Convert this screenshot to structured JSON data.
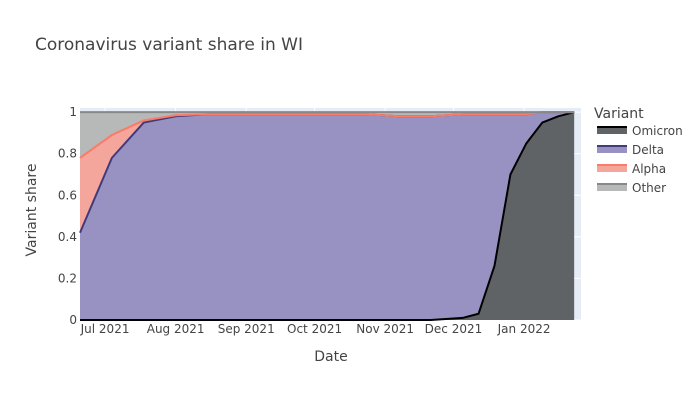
{
  "chart_data": {
    "type": "area",
    "title": "Coronavirus variant share in WI",
    "xlabel": "Date",
    "ylabel": "Variant share",
    "xlim": [
      "2021-06-20",
      "2022-01-26"
    ],
    "ylim": [
      0,
      1.02
    ],
    "grid": true,
    "legend_title": "Variant",
    "legend_position": "right",
    "x_ticks": [
      {
        "date": "2021-07-01",
        "label": "Jul 2021"
      },
      {
        "date": "2021-08-01",
        "label": "Aug 2021"
      },
      {
        "date": "2021-09-01",
        "label": "Sep 2021"
      },
      {
        "date": "2021-10-01",
        "label": "Oct 2021"
      },
      {
        "date": "2021-11-01",
        "label": "Nov 2021"
      },
      {
        "date": "2021-12-01",
        "label": "Dec 2021"
      },
      {
        "date": "2022-01-01",
        "label": "Jan 2022"
      }
    ],
    "y_ticks": [
      0,
      0.2,
      0.4,
      0.6,
      0.8,
      1
    ],
    "x": [
      "2021-06-20",
      "2021-07-04",
      "2021-07-18",
      "2021-08-01",
      "2021-08-15",
      "2021-08-29",
      "2021-09-12",
      "2021-09-26",
      "2021-10-10",
      "2021-10-24",
      "2021-11-07",
      "2021-11-21",
      "2021-12-05",
      "2021-12-12",
      "2021-12-19",
      "2021-12-26",
      "2022-01-02",
      "2022-01-09",
      "2022-01-16",
      "2022-01-23"
    ],
    "series": [
      {
        "name": "Omicron",
        "fill": "#5f6366",
        "line": "#000000",
        "values": [
          0,
          0,
          0,
          0,
          0,
          0,
          0,
          0,
          0,
          0,
          0,
          0,
          0.01,
          0.03,
          0.26,
          0.7,
          0.85,
          0.95,
          0.98,
          1.0
        ]
      },
      {
        "name": "Delta",
        "fill": "#9892c2",
        "line": "#433a7a",
        "values": [
          0.42,
          0.78,
          0.95,
          0.98,
          0.99,
          0.99,
          0.99,
          0.99,
          0.99,
          0.99,
          0.98,
          0.98,
          0.98,
          0.96,
          0.73,
          0.29,
          0.14,
          0.05,
          0.02,
          0
        ]
      },
      {
        "name": "Alpha",
        "fill": "#f5a69c",
        "line": "#fa7b67",
        "values": [
          0.36,
          0.11,
          0.01,
          0.005,
          0,
          0,
          0,
          0,
          0,
          0,
          0,
          0,
          0,
          0,
          0,
          0,
          0,
          0,
          0,
          0
        ]
      },
      {
        "name": "Other",
        "fill": "#b6b9b8",
        "line": "#888888",
        "values": [
          0.22,
          0.11,
          0.04,
          0.015,
          0.01,
          0.01,
          0.01,
          0.01,
          0.01,
          0.01,
          0.02,
          0.02,
          0.01,
          0.01,
          0.01,
          0.01,
          0.01,
          0,
          0,
          0
        ]
      }
    ]
  }
}
